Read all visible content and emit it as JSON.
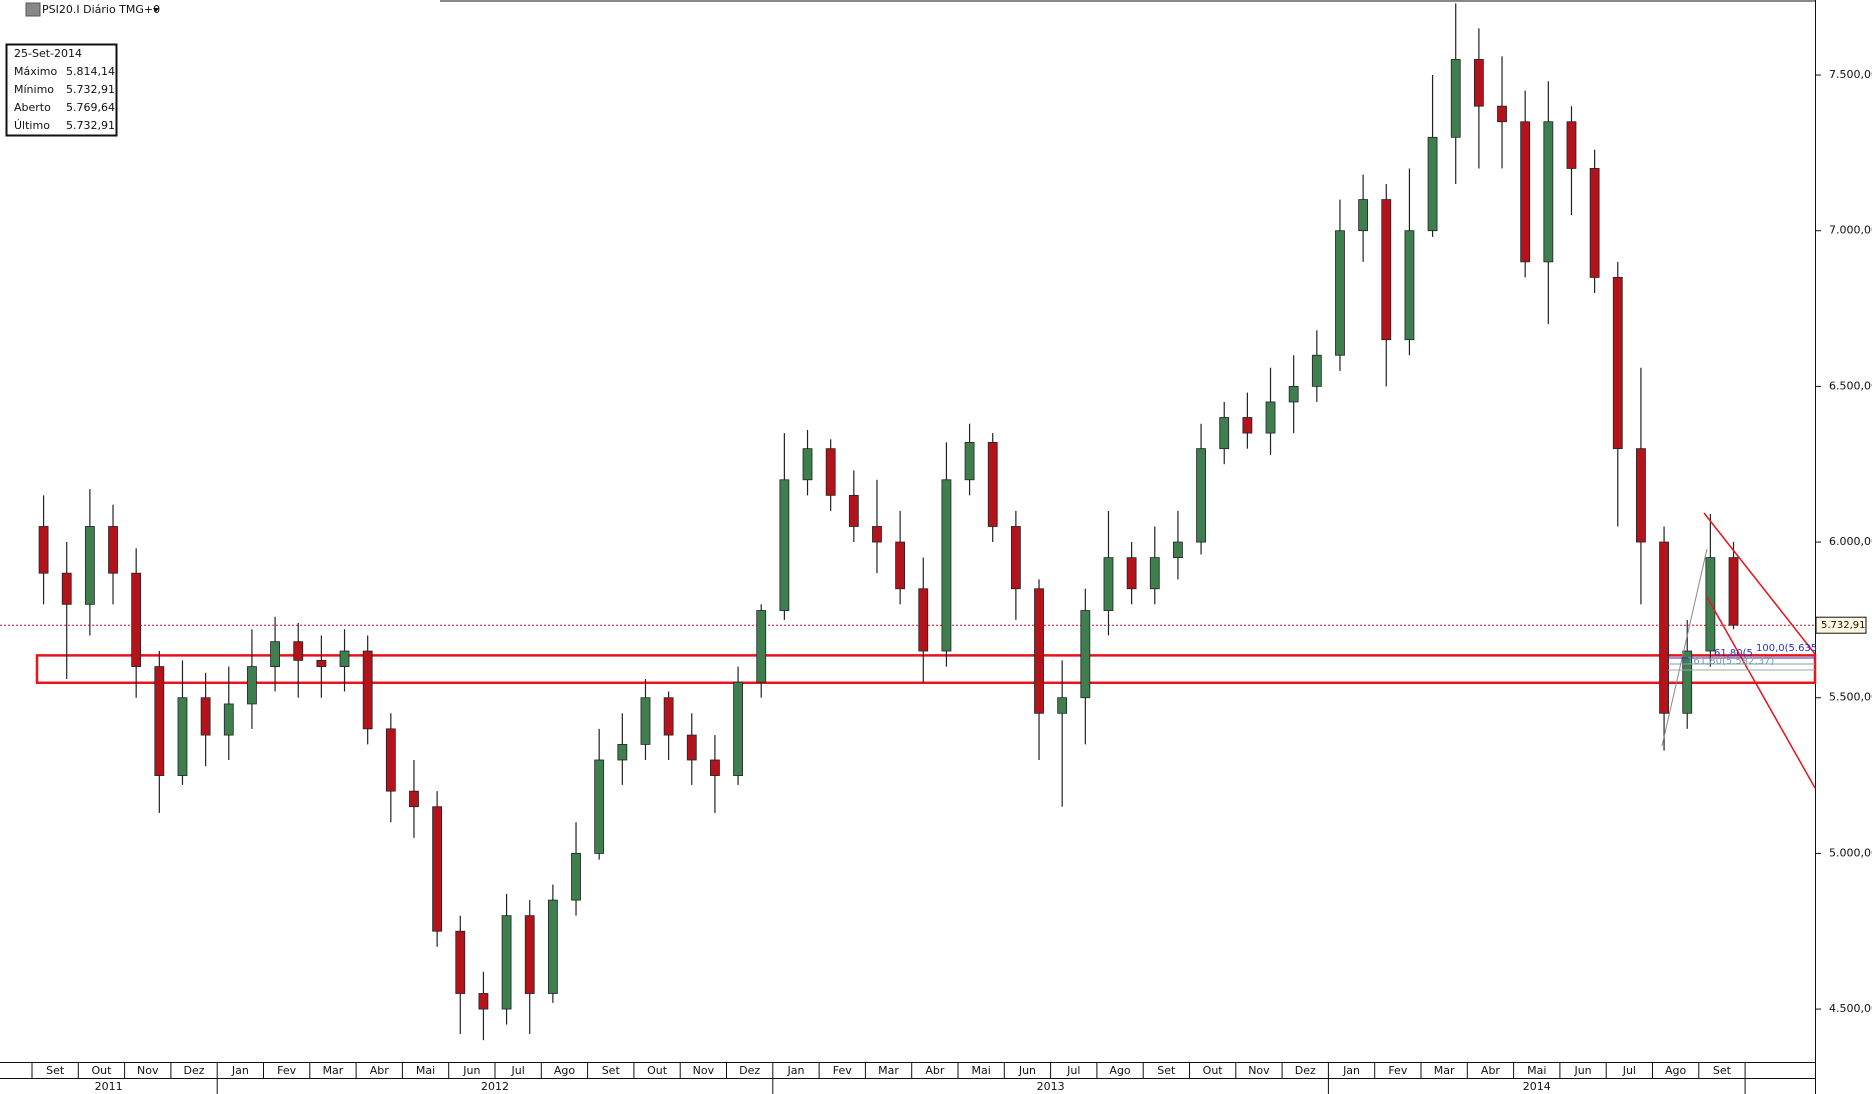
{
  "chart_data": {
    "type": "candlestick",
    "title": "PSI20.I Diário TMG+0",
    "info_box": {
      "date": "25-Set-2014",
      "rows": [
        {
          "label": "Máximo",
          "value": "5.814,14"
        },
        {
          "label": "Mínimo",
          "value": "5.732,91"
        },
        {
          "label": "Aberto",
          "value": "5.769,64"
        },
        {
          "label": "Último",
          "value": "5.732,91"
        }
      ]
    },
    "categories": [
      "Set",
      null,
      "Out",
      null,
      "Nov",
      null,
      "Dez",
      null,
      "Jan",
      null,
      "Fev",
      null,
      "Mar",
      null,
      "Abr",
      null,
      "Mai",
      null,
      "Jun",
      null,
      "Jul",
      null,
      "Ago",
      null,
      "Set",
      null,
      "Out",
      null,
      "Nov",
      null,
      "Dez",
      null,
      "Jan",
      null,
      "Fev",
      null,
      "Mar",
      null,
      "Abr",
      null,
      "Mai",
      null,
      "Jun",
      null,
      "Jul",
      null,
      "Ago",
      null,
      "Set",
      null,
      "Out",
      null,
      "Nov",
      null,
      "Dez",
      null,
      "Jan",
      null,
      "Fev",
      null,
      "Mar",
      null,
      "Abr",
      null,
      "Mai",
      null,
      "Jun",
      null,
      "Jul",
      null,
      "Ago",
      null,
      "Set",
      null
    ],
    "years": [
      "2011",
      "2012",
      "2013",
      "2014"
    ],
    "open": [
      6050,
      5900,
      5800,
      6050,
      5900,
      5600,
      5250,
      5500,
      5380,
      5480,
      5600,
      5680,
      5620,
      5600,
      5650,
      5400,
      5200,
      5150,
      4750,
      4550,
      4500,
      4800,
      4550,
      4850,
      5000,
      5300,
      5350,
      5500,
      5380,
      5300,
      5250,
      5550,
      5780,
      6200,
      6300,
      6150,
      6050,
      6000,
      5850,
      5650,
      6200,
      6320,
      6050,
      5850,
      5450,
      5500,
      5780,
      5950,
      5850,
      5950,
      6000,
      6300,
      6400,
      6350,
      6450,
      6500,
      6600,
      7000,
      7100,
      6650,
      7000,
      7300,
      7550,
      7400,
      7350,
      6900,
      7350,
      7200,
      6850,
      6300,
      6000,
      5450,
      5650,
      5950
    ],
    "high": [
      6150,
      6000,
      6170,
      6120,
      5980,
      5650,
      5620,
      5580,
      5600,
      5720,
      5760,
      5740,
      5700,
      5720,
      5700,
      5450,
      5300,
      5200,
      4800,
      4620,
      4870,
      4850,
      4900,
      5100,
      5400,
      5450,
      5560,
      5520,
      5450,
      5380,
      5600,
      5800,
      6350,
      6360,
      6330,
      6230,
      6200,
      6100,
      5950,
      6320,
      6380,
      6350,
      6100,
      5880,
      5620,
      5850,
      6100,
      6000,
      6050,
      6100,
      6380,
      6450,
      6480,
      6560,
      6600,
      6680,
      7100,
      7180,
      7150,
      7200,
      7500,
      7730,
      7650,
      7560,
      7450,
      7480,
      7400,
      7260,
      6900,
      6560,
      6050,
      5750,
      6090,
      6000
    ],
    "low": [
      5800,
      5560,
      5700,
      5800,
      5500,
      5130,
      5220,
      5280,
      5300,
      5400,
      5520,
      5500,
      5500,
      5520,
      5350,
      5100,
      5050,
      4700,
      4420,
      4400,
      4450,
      4420,
      4520,
      4800,
      4980,
      5220,
      5300,
      5300,
      5220,
      5130,
      5220,
      5500,
      5750,
      6150,
      6100,
      6000,
      5900,
      5800,
      5550,
      5600,
      6150,
      6000,
      5750,
      5300,
      5150,
      5350,
      5700,
      5800,
      5800,
      5880,
      5960,
      6250,
      6300,
      6280,
      6350,
      6450,
      6550,
      6900,
      6500,
      6600,
      6980,
      7150,
      7200,
      7200,
      6850,
      6700,
      7050,
      6800,
      6050,
      5800,
      5330,
      5400,
      5600,
      5720
    ],
    "close": [
      5900,
      5800,
      6050,
      5900,
      5600,
      5250,
      5500,
      5380,
      5480,
      5600,
      5680,
      5620,
      5600,
      5650,
      5400,
      5200,
      5150,
      4750,
      4550,
      4500,
      4800,
      4550,
      4850,
      5000,
      5300,
      5350,
      5500,
      5380,
      5300,
      5250,
      5550,
      5780,
      6200,
      6300,
      6150,
      6050,
      6000,
      5850,
      5650,
      6200,
      6320,
      6050,
      5850,
      5450,
      5500,
      5780,
      5950,
      5850,
      5950,
      6000,
      6300,
      6400,
      6350,
      6450,
      6500,
      6600,
      7000,
      7100,
      6650,
      7000,
      7300,
      7550,
      7400,
      7350,
      6900,
      7350,
      7200,
      6850,
      6300,
      6000,
      5450,
      5650,
      5950,
      5732.91
    ],
    "up_color": "#3f7f4f",
    "down_color": "#b3141c",
    "ylim": [
      4330,
      7741
    ],
    "yticks": [
      {
        "value": 4500,
        "label": "4.500,00"
      },
      {
        "value": 5000,
        "label": "5.000,00"
      },
      {
        "value": 5500,
        "label": "5.500,00"
      },
      {
        "value": 6000,
        "label": "6.000,00"
      },
      {
        "value": 6500,
        "label": "6.500,00"
      },
      {
        "value": 7000,
        "label": "7.000,00"
      },
      {
        "value": 7500,
        "label": "7.500,00"
      }
    ],
    "last_price": {
      "value": 5732.91,
      "label": "5.732,91"
    },
    "zone": [
      5548,
      5636
    ],
    "zone_color": "#e8141c",
    "annotations": [
      "100,0(5.635",
      "61,80(5",
      "161,80(5.582,37)"
    ]
  }
}
